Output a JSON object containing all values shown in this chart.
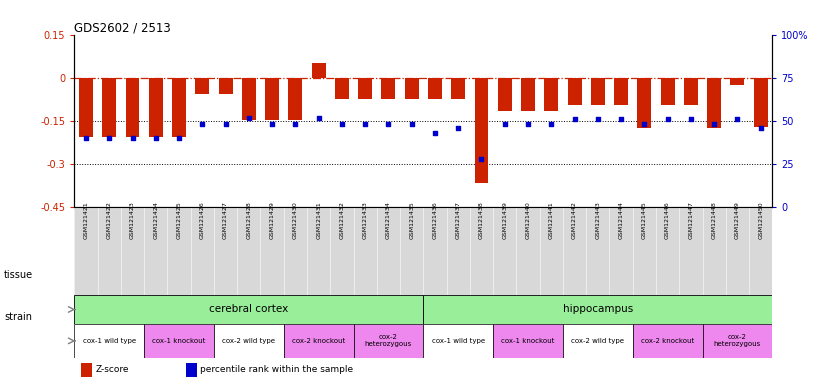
{
  "title": "GDS2602 / 2513",
  "samples": [
    "GSM121421",
    "GSM121422",
    "GSM121423",
    "GSM121424",
    "GSM121425",
    "GSM121426",
    "GSM121427",
    "GSM121428",
    "GSM121429",
    "GSM121430",
    "GSM121431",
    "GSM121432",
    "GSM121433",
    "GSM121434",
    "GSM121435",
    "GSM121436",
    "GSM121437",
    "GSM121438",
    "GSM121439",
    "GSM121440",
    "GSM121441",
    "GSM121442",
    "GSM121443",
    "GSM121444",
    "GSM121445",
    "GSM121446",
    "GSM121447",
    "GSM121448",
    "GSM121449",
    "GSM121450"
  ],
  "z_scores": [
    -0.205,
    -0.205,
    -0.205,
    -0.205,
    -0.205,
    -0.055,
    -0.055,
    -0.145,
    -0.145,
    -0.145,
    0.05,
    -0.075,
    -0.075,
    -0.075,
    -0.075,
    -0.075,
    -0.075,
    -0.365,
    -0.115,
    -0.115,
    -0.115,
    -0.095,
    -0.095,
    -0.095,
    -0.175,
    -0.095,
    -0.095,
    -0.175,
    -0.025,
    -0.17
  ],
  "percentile_ranks": [
    40,
    40,
    40,
    40,
    40,
    48,
    48,
    52,
    48,
    48,
    52,
    48,
    48,
    48,
    48,
    43,
    46,
    28,
    48,
    48,
    48,
    51,
    51,
    51,
    48,
    51,
    51,
    48,
    51,
    46
  ],
  "ylim_left": [
    -0.45,
    0.15
  ],
  "ylim_right": [
    0,
    100
  ],
  "left_ticks": [
    0.15,
    0.0,
    -0.15,
    -0.3,
    -0.45
  ],
  "left_ticklabels": [
    "0.15",
    "0",
    "-0.15",
    "-0.3",
    "-0.45"
  ],
  "right_ticks": [
    100,
    75,
    50,
    25,
    0
  ],
  "right_ticklabels": [
    "100%",
    "75",
    "50",
    "25",
    "0"
  ],
  "bar_color": "#cc2200",
  "dot_color": "#0000cc",
  "bg_color": "#ffffff",
  "tick_area_color": "#d8d8d8",
  "tissue_groups": [
    {
      "label": "cerebral cortex",
      "start": 0,
      "end": 15,
      "color": "#99ee99"
    },
    {
      "label": "hippocampus",
      "start": 15,
      "end": 30,
      "color": "#99ee99"
    }
  ],
  "strain_groups": [
    {
      "label": "cox-1 wild type",
      "start": 0,
      "end": 3,
      "color": "#ffffff"
    },
    {
      "label": "cox-1 knockout",
      "start": 3,
      "end": 6,
      "color": "#ee88ee"
    },
    {
      "label": "cox-2 wild type",
      "start": 6,
      "end": 9,
      "color": "#ffffff"
    },
    {
      "label": "cox-2 knockout",
      "start": 9,
      "end": 12,
      "color": "#ee88ee"
    },
    {
      "label": "cox-2\nheterozygous",
      "start": 12,
      "end": 15,
      "color": "#ee88ee"
    },
    {
      "label": "cox-1 wild type",
      "start": 15,
      "end": 18,
      "color": "#ffffff"
    },
    {
      "label": "cox-1 knockout",
      "start": 18,
      "end": 21,
      "color": "#ee88ee"
    },
    {
      "label": "cox-2 wild type",
      "start": 21,
      "end": 24,
      "color": "#ffffff"
    },
    {
      "label": "cox-2 knockout",
      "start": 24,
      "end": 27,
      "color": "#ee88ee"
    },
    {
      "label": "cox-2\nheterozygous",
      "start": 27,
      "end": 30,
      "color": "#ee88ee"
    }
  ],
  "legend_items": [
    {
      "label": "Z-score",
      "color": "#cc2200"
    },
    {
      "label": "percentile rank within the sample",
      "color": "#0000cc"
    }
  ]
}
